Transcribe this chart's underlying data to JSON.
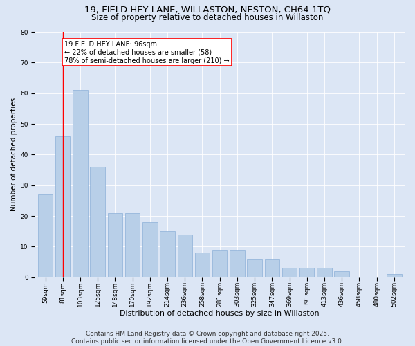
{
  "title_line1": "19, FIELD HEY LANE, WILLASTON, NESTON, CH64 1TQ",
  "title_line2": "Size of property relative to detached houses in Willaston",
  "xlabel": "Distribution of detached houses by size in Willaston",
  "ylabel": "Number of detached properties",
  "categories": [
    "59sqm",
    "81sqm",
    "103sqm",
    "125sqm",
    "148sqm",
    "170sqm",
    "192sqm",
    "214sqm",
    "236sqm",
    "258sqm",
    "281sqm",
    "303sqm",
    "325sqm",
    "347sqm",
    "369sqm",
    "391sqm",
    "413sqm",
    "436sqm",
    "458sqm",
    "480sqm",
    "502sqm"
  ],
  "values": [
    27,
    46,
    61,
    36,
    21,
    21,
    18,
    15,
    14,
    8,
    9,
    9,
    6,
    6,
    3,
    3,
    3,
    2,
    0,
    0,
    1
  ],
  "bar_color": "#b8cfe8",
  "bar_edge_color": "#8cb0d8",
  "vline_x": 1.0,
  "vline_color": "red",
  "annotation_text": "19 FIELD HEY LANE: 96sqm\n← 22% of detached houses are smaller (58)\n78% of semi-detached houses are larger (210) →",
  "annotation_box_color": "white",
  "annotation_box_edge_color": "red",
  "ylim": [
    0,
    80
  ],
  "yticks": [
    0,
    10,
    20,
    30,
    40,
    50,
    60,
    70,
    80
  ],
  "background_color": "#dce6f5",
  "plot_bg_color": "#dce6f5",
  "footer_line1": "Contains HM Land Registry data © Crown copyright and database right 2025.",
  "footer_line2": "Contains public sector information licensed under the Open Government Licence v3.0.",
  "title_fontsize": 9.5,
  "subtitle_fontsize": 8.5,
  "xlabel_fontsize": 8,
  "ylabel_fontsize": 7.5,
  "tick_fontsize": 6.5,
  "annotation_fontsize": 7,
  "footer_fontsize": 6.5,
  "grid_color": "#ffffff"
}
